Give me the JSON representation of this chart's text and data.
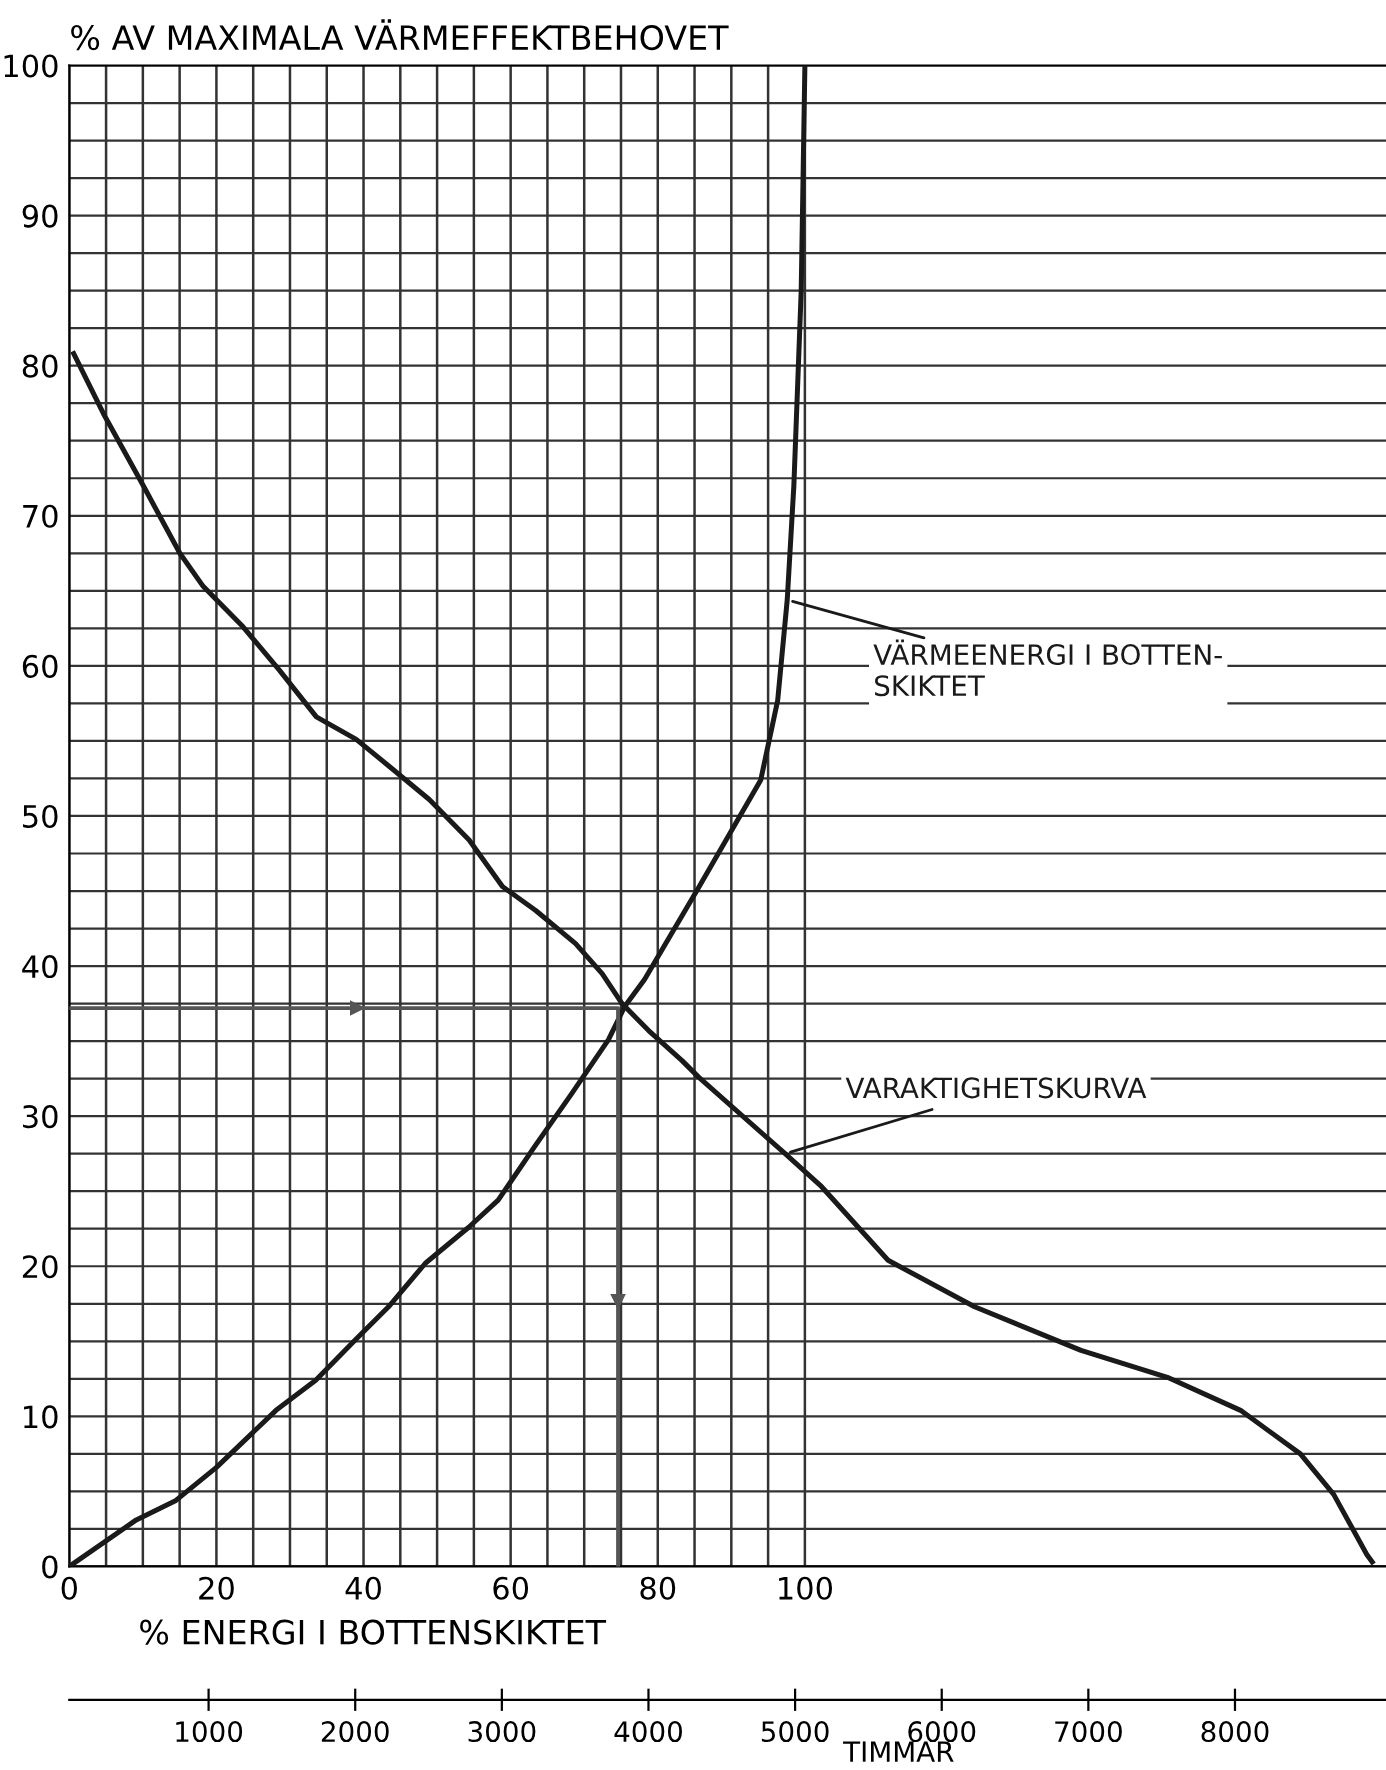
{
  "chart_data": {
    "type": "line",
    "ylabel": "% AV MAXIMALA VÄRMEFFEKTBEHOVET",
    "xlabel": "% ENERGI I BOTTENSKIKTET",
    "x2label": "TIMMAR",
    "xlim": [
      0,
      179
    ],
    "xticks": [
      0,
      {
        "value": 5,
        "label": null
      },
      {
        "value": 10,
        "label": null
      },
      {
        "value": 15,
        "label": null
      },
      20,
      {
        "value": 25,
        "label": null
      },
      {
        "value": 30,
        "label": null
      },
      {
        "value": 35,
        "label": null
      },
      40,
      {
        "value": 45,
        "label": null
      },
      {
        "value": 50,
        "label": null
      },
      {
        "value": 55,
        "label": null
      },
      60,
      {
        "value": 65,
        "label": null
      },
      {
        "value": 70,
        "label": null
      },
      {
        "value": 75,
        "label": null
      },
      80,
      {
        "value": 85,
        "label": null
      },
      {
        "value": 90,
        "label": null
      },
      {
        "value": 95,
        "label": null
      },
      100
    ],
    "x2lim": [
      50,
      9030
    ],
    "x2ticks": [
      1000,
      2000,
      3000,
      4000,
      5000,
      6000,
      7000,
      8000
    ],
    "ylim": [
      0,
      100
    ],
    "yticks": [
      0,
      {
        "value": 2.5,
        "label": null
      },
      {
        "value": 5,
        "label": null
      },
      {
        "value": 7.5,
        "label": null
      },
      10,
      {
        "value": 12.5,
        "label": null
      },
      {
        "value": 15,
        "label": null
      },
      {
        "value": 17.5,
        "label": null
      },
      20,
      {
        "value": 22.5,
        "label": null
      },
      {
        "value": 25,
        "label": null
      },
      {
        "value": 27.5,
        "label": null
      },
      30,
      {
        "value": 32.5,
        "label": null
      },
      {
        "value": 35,
        "label": null
      },
      {
        "value": 37.5,
        "label": null
      },
      40,
      {
        "value": 42.5,
        "label": null
      },
      {
        "value": 45,
        "label": null
      },
      {
        "value": 47.5,
        "label": null
      },
      50,
      {
        "value": 52.5,
        "label": null
      },
      {
        "value": 55,
        "label": null
      },
      {
        "value": 57.5,
        "label": null
      },
      60,
      {
        "value": 62.5,
        "label": null
      },
      {
        "value": 65,
        "label": null
      },
      {
        "value": 67.5,
        "label": null
      },
      70,
      {
        "value": 72.5,
        "label": null
      },
      {
        "value": 75,
        "label": null
      },
      {
        "value": 77.5,
        "label": null
      },
      80,
      {
        "value": 82.5,
        "label": null
      },
      {
        "value": 85,
        "label": null
      },
      {
        "value": 87.5,
        "label": null
      },
      90,
      {
        "value": 92.5,
        "label": null
      },
      {
        "value": 95,
        "label": null
      },
      {
        "value": 97.5,
        "label": null
      },
      100
    ],
    "grid": true,
    "marker": "none",
    "line_style": "solid",
    "series": [
      {
        "name": "VÄRMEENERGI I BOTTEN-\nSKIKTET",
        "color": "#1a1a1a",
        "x": [
          0,
          9.1,
          14.5,
          20,
          28.1,
          33.5,
          38.9,
          43.4,
          48.4,
          54.3,
          58.3,
          63.3,
          68.3,
          73.3,
          75.5,
          78.2,
          85.4,
          94,
          96.3,
          97.6,
          98.5,
          99.5,
          100
        ],
        "values": [
          0,
          3.1,
          4.4,
          6.6,
          10.4,
          12.4,
          15.1,
          17.3,
          20.2,
          22.6,
          24.4,
          28,
          31.5,
          35.1,
          37.3,
          39.1,
          45.1,
          52.4,
          57.7,
          64.4,
          72,
          85,
          100
        ]
      },
      {
        "name": "VARAKTIGHETSKURVA",
        "color": "#1a1a1a",
        "axis": "x2",
        "x": [
          80,
          283,
          555,
          804,
          963,
          1235,
          1484,
          1735,
          2007,
          2233,
          2505,
          2777,
          3004,
          3231,
          3503,
          3684,
          3820,
          4001,
          4229,
          4342,
          4932,
          5181,
          5634,
          6224,
          6950,
          7539,
          8038,
          8446,
          8673,
          8899,
          8936
        ],
        "values": [
          80.8,
          76.8,
          72,
          67.5,
          65.3,
          62.6,
          59.7,
          56.6,
          55.1,
          53.3,
          51.1,
          48.4,
          45.3,
          43.7,
          41.5,
          39.5,
          37.5,
          35.7,
          33.7,
          32.6,
          27.5,
          25.3,
          20.4,
          17.3,
          14.4,
          12.6,
          10.4,
          7.5,
          4.8,
          0.8,
          0.3
        ]
      },
      {
        "color": "#555555",
        "x": [
          0,
          74.6,
          74.6
        ],
        "values": [
          37.2,
          37.2,
          0
        ]
      }
    ]
  }
}
